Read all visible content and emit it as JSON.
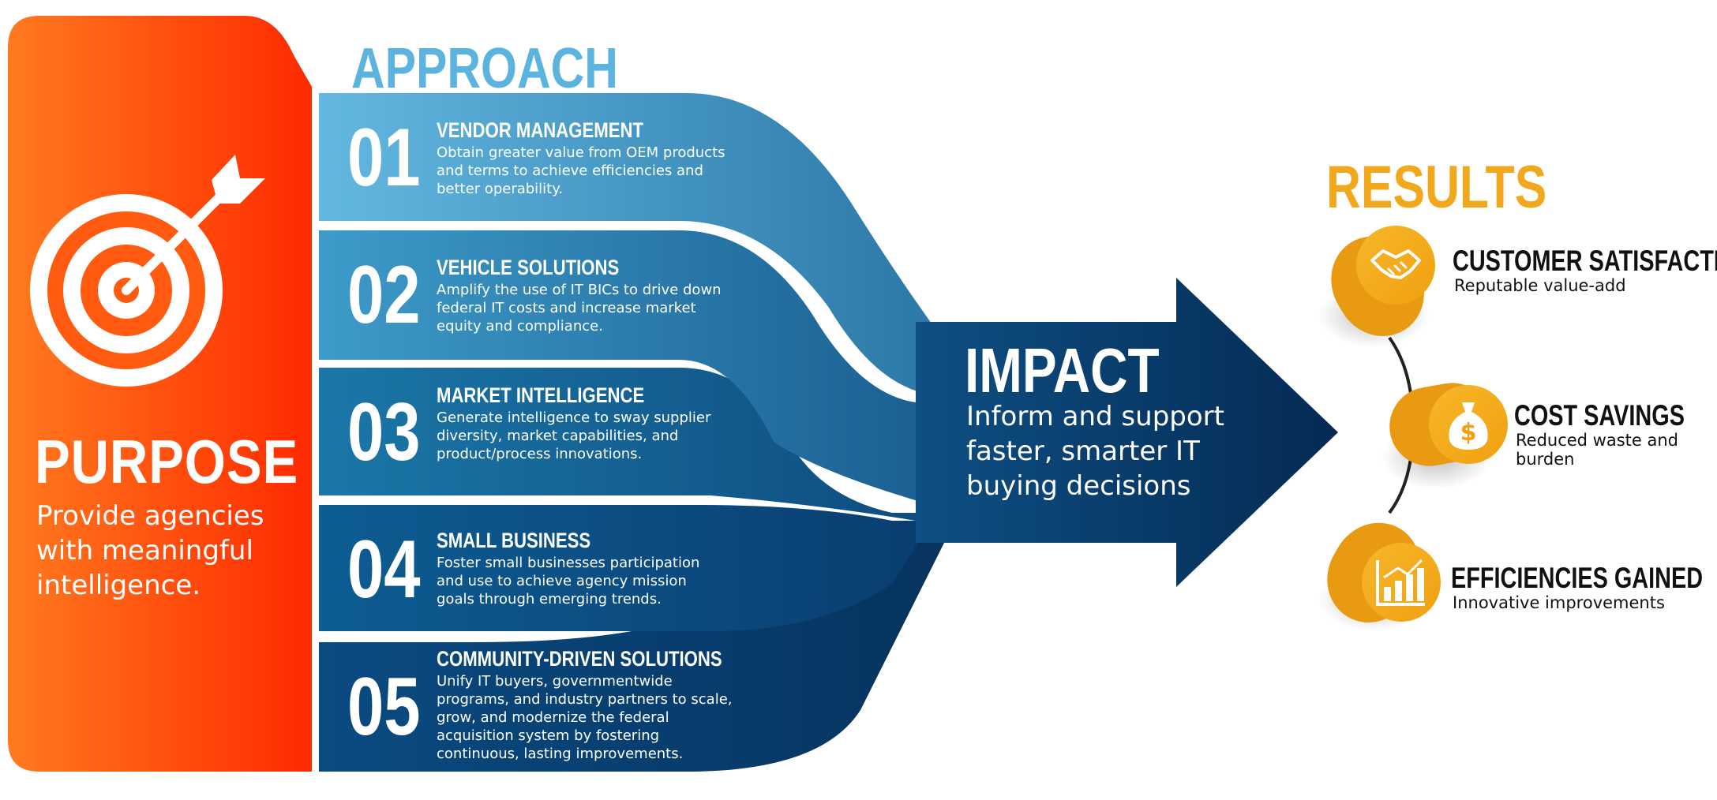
{
  "colors": {
    "purpose_orange": "#ff4d00",
    "approach_blue": "#5ab4df",
    "impact_navy": "#062f5c",
    "results_gold": "#f2a81d"
  },
  "purpose": {
    "title": "PURPOSE",
    "text": "Provide agencies with meaningful intelligence.",
    "icon": "target-arrow-icon"
  },
  "approach": {
    "title": "APPROACH",
    "steps": [
      {
        "number": "01",
        "heading": "VENDOR MANAGEMENT",
        "text": "Obtain greater value from OEM products and terms to achieve efficiencies and better operability."
      },
      {
        "number": "02",
        "heading": "VEHICLE SOLUTIONS",
        "text": "Amplify the use of IT BICs to drive down federal IT costs and increase market equity and compliance."
      },
      {
        "number": "03",
        "heading": "MARKET INTELLIGENCE",
        "text": "Generate intelligence to sway supplier diversity, market capabilities, and product/process innovations."
      },
      {
        "number": "04",
        "heading": "SMALL BUSINESS",
        "text": "Foster small businesses participation and use to achieve agency mission goals through emerging trends."
      },
      {
        "number": "05",
        "heading": "COMMUNITY-DRIVEN SOLUTIONS",
        "text": "Unify IT buyers, governmentwide programs, and industry partners to scale, grow, and modernize the federal acquisition system by fostering continuous, lasting improvements."
      }
    ]
  },
  "impact": {
    "title": "IMPACT",
    "text": "Inform and support faster, smarter IT buying decisions"
  },
  "results": {
    "title": "RESULTS",
    "items": [
      {
        "heading": "CUSTOMER SATISFACTION",
        "text": "Reputable value-add",
        "icon": "handshake-icon"
      },
      {
        "heading": "COST SAVINGS",
        "text": "Reduced waste and burden",
        "icon": "money-bag-icon"
      },
      {
        "heading": "EFFICIENCIES GAINED",
        "text": "Innovative improvements",
        "icon": "bar-chart-icon"
      }
    ]
  }
}
